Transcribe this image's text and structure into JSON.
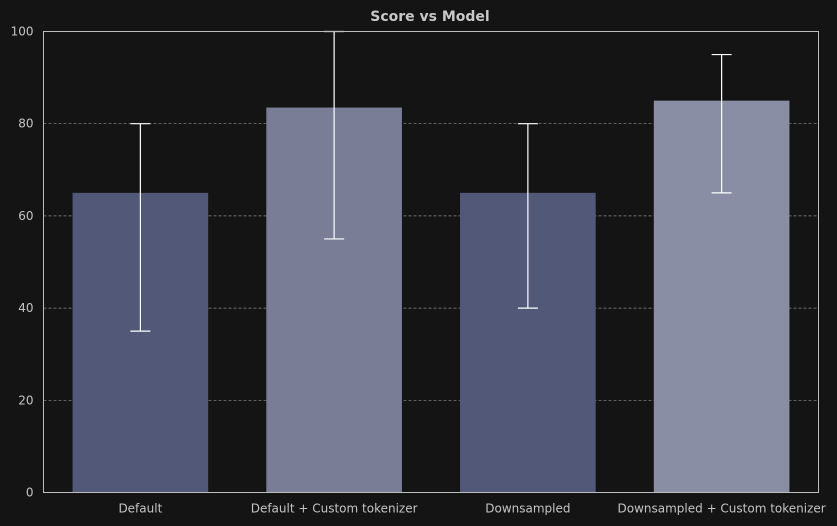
{
  "chart_data": {
    "type": "bar",
    "title": "Score vs Model",
    "xlabel": "",
    "ylabel": "",
    "ylim": [
      0,
      100
    ],
    "yticks": [
      0,
      20,
      40,
      60,
      80,
      100
    ],
    "grid": "horizontal-dashed",
    "categories": [
      "Default",
      "Default + Custom tokenizer",
      "Downsampled",
      "Downsampled + Custom tokenizer"
    ],
    "values": [
      65,
      83.5,
      65,
      85
    ],
    "error_low": [
      35,
      55,
      40,
      65
    ],
    "error_high": [
      80,
      100,
      80,
      95
    ],
    "colors": [
      "#525878",
      "#7a7d96",
      "#525878",
      "#8a8ea4"
    ]
  }
}
